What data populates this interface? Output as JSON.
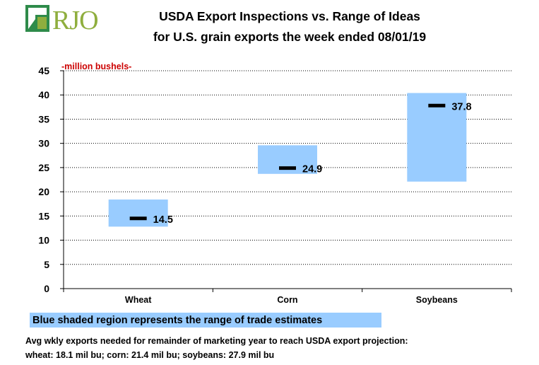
{
  "logo": {
    "text": "RJO"
  },
  "chart_data": {
    "type": "range-bar",
    "title": "USDA Export Inspections vs. Range of Ideas",
    "subtitle": "for U.S. grain exports the week ended 08/01/19",
    "unit_label": "-million bushels-",
    "categories": [
      "Wheat",
      "Corn",
      "Soybeans"
    ],
    "ranges": [
      {
        "low": 12.8,
        "high": 18.4
      },
      {
        "low": 23.7,
        "high": 29.6
      },
      {
        "low": 22.1,
        "high": 40.4
      }
    ],
    "actual": [
      14.5,
      24.9,
      37.8
    ],
    "actual_labels": [
      "14.5",
      "24.9",
      "37.8"
    ],
    "ylim": [
      0,
      45
    ],
    "yticks": [
      "0",
      "5",
      "10",
      "15",
      "20",
      "25",
      "30",
      "35",
      "40",
      "45"
    ],
    "grid": true,
    "colors": {
      "range": "#99ccff",
      "marker": "#000000",
      "unit_label": "#cc0000"
    }
  },
  "legend": {
    "text": "Blue shaded region represents the range of trade estimates"
  },
  "footnote": {
    "line1": "Avg wkly exports needed for remainder of marketing year to reach USDA export projection:",
    "line2": "wheat: 18.1 mil bu; corn: 21.4 mil bu; soybeans: 27.9 mil bu"
  }
}
